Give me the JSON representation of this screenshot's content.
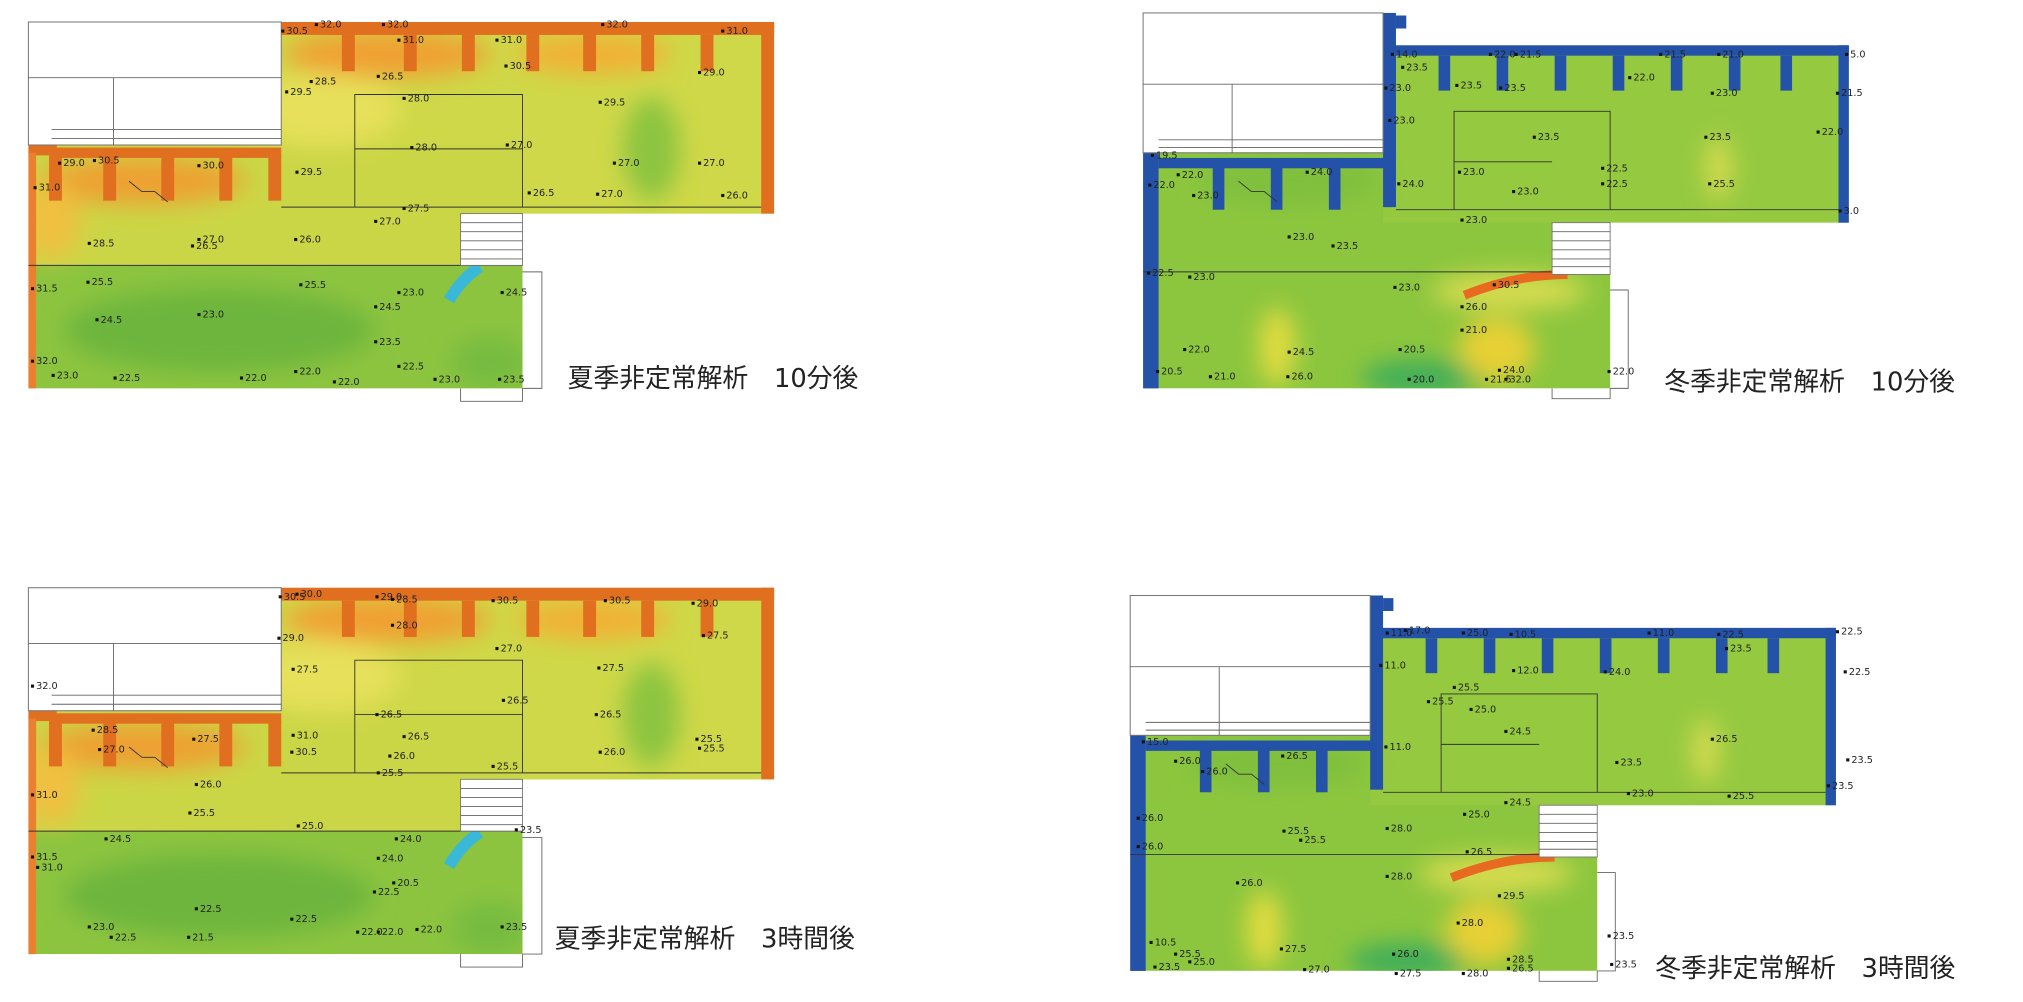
{
  "panels": [
    {
      "caption": "夏季非定常解析　10分後",
      "labels": [
        "30.5",
        "32.0",
        "32.0",
        "32.0",
        "31.0",
        "31.0",
        "31.0",
        "30.5",
        "29.0",
        "28.5",
        "29.5",
        "26.5",
        "28.0",
        "29.5",
        "29.0",
        "30.5",
        "30.0",
        "29.5",
        "28.0",
        "27.0",
        "27.0",
        "27.0",
        "31.0",
        "26.5",
        "27.0",
        "26.0",
        "27.5",
        "27.0",
        "28.5",
        "27.0",
        "26.5",
        "26.0",
        "31.5",
        "25.5",
        "25.5",
        "23.0",
        "24.5",
        "24.5",
        "24.5",
        "23.0",
        "23.5",
        "32.0",
        "23.0",
        "22.5",
        "22.0",
        "22.0",
        "22.0",
        "22.5",
        "23.0",
        "23.5"
      ]
    },
    {
      "caption": "冬季非定常解析　10分後",
      "labels": [
        "14.0",
        "22.0",
        "21.5",
        "21.5",
        "21.0",
        "5.0",
        "23.5",
        "23.0",
        "23.5",
        "23.5",
        "22.0",
        "23.0",
        "21.5",
        "23.0",
        "23.5",
        "23.5",
        "22.0",
        "19.5",
        "22.0",
        "24.0",
        "23.0",
        "22.5",
        "23.0",
        "24.0",
        "22.5",
        "23.0",
        "25.5",
        "22.0",
        "3.0",
        "23.0",
        "23.0",
        "23.5",
        "22.5",
        "23.0",
        "23.0",
        "30.5",
        "26.0",
        "21.0",
        "22.0",
        "24.5",
        "20.5",
        "22.0",
        "20.5",
        "21.0",
        "26.0",
        "20.0",
        "24.0",
        "21.5",
        "32.0"
      ]
    },
    {
      "caption": "夏季非定常解析　3時間後",
      "labels": [
        "30.5",
        "30.0",
        "29.0",
        "28.5",
        "30.5",
        "30.5",
        "29.0",
        "28.0",
        "29.0",
        "27.5",
        "27.0",
        "27.5",
        "27.5",
        "32.0",
        "28.5",
        "27.0",
        "27.5",
        "31.0",
        "30.5",
        "26.5",
        "26.5",
        "26.0",
        "26.5",
        "26.5",
        "25.5",
        "25.5",
        "26.0",
        "25.5",
        "25.5",
        "31.0",
        "26.0",
        "25.5",
        "25.0",
        "23.5",
        "24.0",
        "24.5",
        "24.0",
        "20.5",
        "22.5",
        "31.5",
        "31.0",
        "22.5",
        "22.5",
        "23.0",
        "22.5",
        "21.5",
        "22.0",
        "22.0",
        "22.0",
        "23.5"
      ]
    },
    {
      "caption": "冬季非定常解析　3時間後",
      "labels": [
        "11.0",
        "17.0",
        "25.0",
        "10.5",
        "11.0",
        "22.5",
        "22.5",
        "23.5",
        "11.0",
        "12.0",
        "24.0",
        "22.5",
        "25.5",
        "25.5",
        "25.0",
        "24.5",
        "26.5",
        "11.0",
        "15.0",
        "26.0",
        "26.0",
        "26.5",
        "23.5",
        "23.5",
        "23.5",
        "23.0",
        "25.5",
        "24.5",
        "25.0",
        "26.0",
        "25.5",
        "25.5",
        "28.0",
        "26.5",
        "26.0",
        "26.0",
        "28.0",
        "29.5",
        "28.0",
        "23.5",
        "10.5",
        "27.5",
        "26.0",
        "28.5",
        "25.5",
        "25.0",
        "23.5",
        "27.0",
        "27.5",
        "28.0",
        "26.5",
        "23.5"
      ]
    }
  ]
}
